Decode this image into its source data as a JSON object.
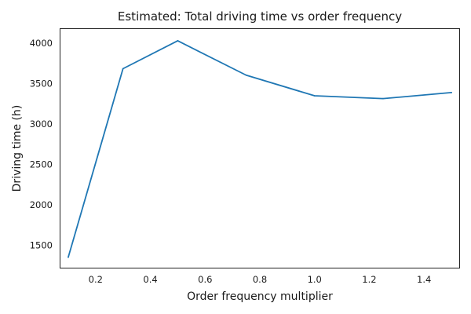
{
  "chart_data": {
    "type": "line",
    "title": "Estimated: Total driving time vs order frequency",
    "xlabel": "Order frequency multiplier",
    "ylabel": "Driving time (h)",
    "xlim": [
      0.07,
      1.53
    ],
    "ylim": [
      1220,
      4180
    ],
    "grid": false,
    "x_ticks": [
      0.2,
      0.4,
      0.6,
      0.8,
      1.0,
      1.2,
      1.4
    ],
    "x_tick_labels": [
      "0.2",
      "0.4",
      "0.6",
      "0.8",
      "1.0",
      "1.2",
      "1.4"
    ],
    "y_ticks": [
      1500,
      2000,
      2500,
      3000,
      3500,
      4000
    ],
    "y_tick_labels": [
      "1500",
      "2000",
      "2500",
      "3000",
      "3500",
      "4000"
    ],
    "series": [
      {
        "color": "#1f77b4",
        "x": [
          0.1,
          0.3,
          0.5,
          0.75,
          1.0,
          1.25,
          1.5
        ],
        "y": [
          1355,
          3685,
          4030,
          3605,
          3350,
          3315,
          3390
        ]
      }
    ]
  }
}
